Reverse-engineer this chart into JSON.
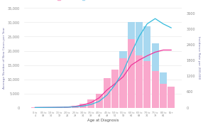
{
  "age_labels": [
    "0 to\n4",
    "05 to\n09",
    "10 to\n14",
    "15 to\n19",
    "20 to\n24",
    "25 to\n29",
    "30 to\n34",
    "35 to\n39",
    "40 to\n44",
    "45 to\n49",
    "50 to\n54",
    "55 to\n59",
    "60 to\n64",
    "65 to\n69",
    "70 to\n74",
    "75 to\n79",
    "80 to\n84",
    "85+"
  ],
  "female_cases": [
    100,
    100,
    120,
    180,
    350,
    700,
    1500,
    2800,
    5000,
    10500,
    13500,
    17500,
    24000,
    18500,
    16500,
    13000,
    8500,
    7500
  ],
  "male_cases": [
    100,
    100,
    120,
    180,
    250,
    400,
    900,
    1600,
    3200,
    7200,
    12500,
    20000,
    30000,
    30200,
    28500,
    22500,
    12500,
    4800
  ],
  "female_rates": [
    5,
    8,
    10,
    14,
    22,
    48,
    105,
    195,
    375,
    680,
    920,
    1180,
    1620,
    1820,
    1980,
    2120,
    2200,
    2200
  ],
  "male_rates": [
    5,
    8,
    10,
    14,
    18,
    32,
    60,
    125,
    240,
    490,
    880,
    1380,
    2080,
    2720,
    3200,
    3400,
    3200,
    3050
  ],
  "female_bar_color": "#F9A8CC",
  "male_bar_color": "#A8D8F0",
  "female_line_color": "#EE3399",
  "male_line_color": "#33BBDD",
  "left_ylim": [
    0,
    35000
  ],
  "left_yticks": [
    0,
    5000,
    10000,
    15000,
    20000,
    25000,
    30000,
    35000
  ],
  "right_ylim": [
    0,
    3800
  ],
  "right_yticks": [
    0,
    600,
    1200,
    1800,
    2400,
    3000,
    3600
  ],
  "left_ylabel": "Average Number of New Cases per Year",
  "right_ylabel": "Incidence Rate per 200,000",
  "xlabel": "Age at Diagnosis",
  "background_color": "#ffffff"
}
